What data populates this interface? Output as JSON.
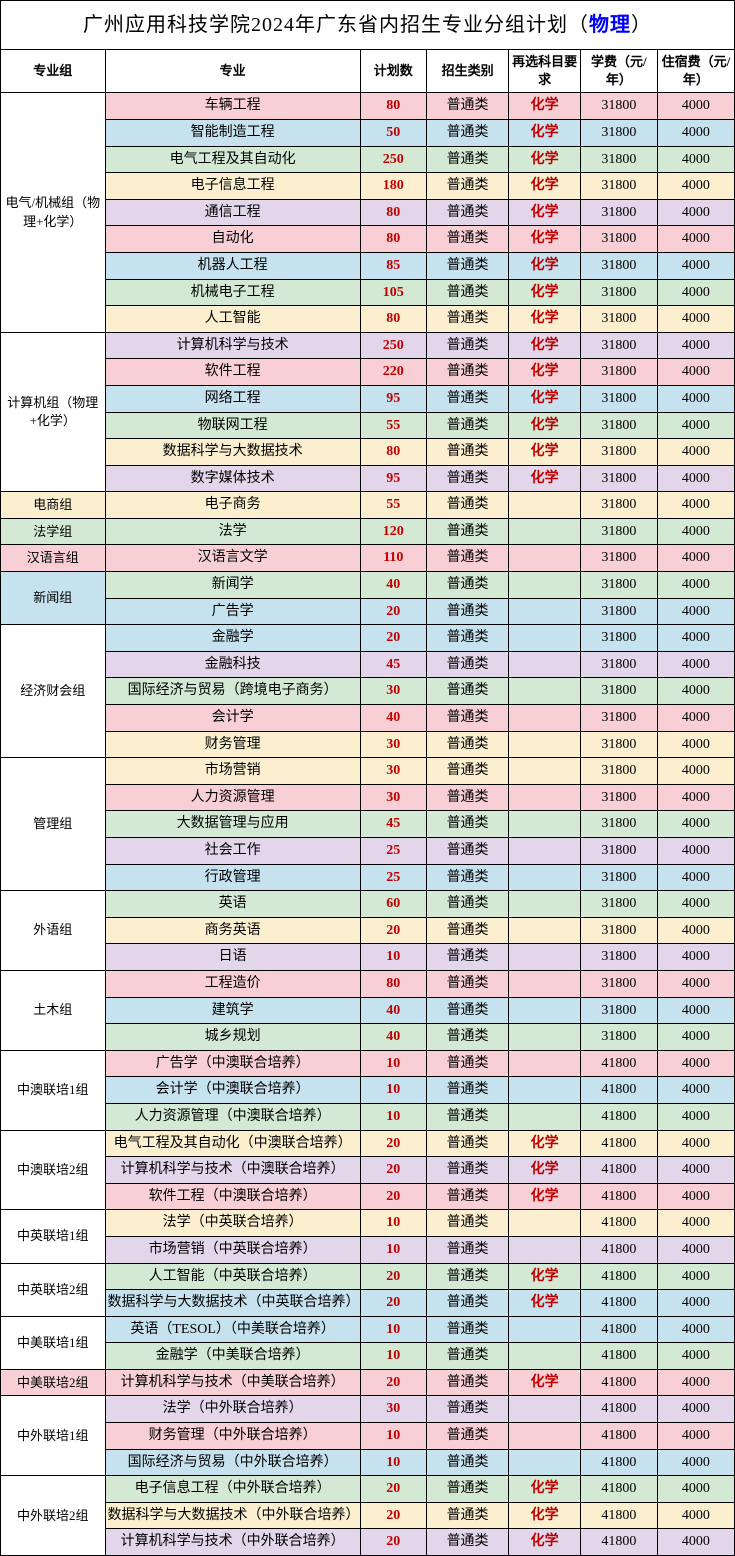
{
  "title_prefix": "广州应用科技学院2024年广东省内招生专业分组计划（",
  "title_subject": "物理",
  "title_suffix": "）",
  "headers": {
    "group": "专业组",
    "major": "专业",
    "plan": "计划数",
    "category": "招生类别",
    "subject": "再选科目要求",
    "tuition": "学费（元/年）",
    "dorm": "住宿费（元/年）"
  },
  "palette": {
    "pink": "#f8cfd4",
    "blue": "#c6e2ef",
    "green": "#d4e9d3",
    "yellow": "#fcefcf",
    "purple": "#e3d6ea"
  },
  "groups": [
    {
      "name": "电气/机械组（物理+化学）",
      "rows": [
        {
          "major": "车辆工程",
          "plan": "80",
          "cat": "普通类",
          "subj": "化学",
          "tuition": "31800",
          "dorm": "4000",
          "c": "pink"
        },
        {
          "major": "智能制造工程",
          "plan": "50",
          "cat": "普通类",
          "subj": "化学",
          "tuition": "31800",
          "dorm": "4000",
          "c": "blue"
        },
        {
          "major": "电气工程及其自动化",
          "plan": "250",
          "cat": "普通类",
          "subj": "化学",
          "tuition": "31800",
          "dorm": "4000",
          "c": "green"
        },
        {
          "major": "电子信息工程",
          "plan": "180",
          "cat": "普通类",
          "subj": "化学",
          "tuition": "31800",
          "dorm": "4000",
          "c": "yellow"
        },
        {
          "major": "通信工程",
          "plan": "80",
          "cat": "普通类",
          "subj": "化学",
          "tuition": "31800",
          "dorm": "4000",
          "c": "purple"
        },
        {
          "major": "自动化",
          "plan": "80",
          "cat": "普通类",
          "subj": "化学",
          "tuition": "31800",
          "dorm": "4000",
          "c": "pink"
        },
        {
          "major": "机器人工程",
          "plan": "85",
          "cat": "普通类",
          "subj": "化学",
          "tuition": "31800",
          "dorm": "4000",
          "c": "blue"
        },
        {
          "major": "机械电子工程",
          "plan": "105",
          "cat": "普通类",
          "subj": "化学",
          "tuition": "31800",
          "dorm": "4000",
          "c": "green"
        },
        {
          "major": "人工智能",
          "plan": "80",
          "cat": "普通类",
          "subj": "化学",
          "tuition": "31800",
          "dorm": "4000",
          "c": "yellow"
        }
      ]
    },
    {
      "name": "计算机组（物理+化学）",
      "rows": [
        {
          "major": "计算机科学与技术",
          "plan": "250",
          "cat": "普通类",
          "subj": "化学",
          "tuition": "31800",
          "dorm": "4000",
          "c": "purple"
        },
        {
          "major": "软件工程",
          "plan": "220",
          "cat": "普通类",
          "subj": "化学",
          "tuition": "31800",
          "dorm": "4000",
          "c": "pink"
        },
        {
          "major": "网络工程",
          "plan": "95",
          "cat": "普通类",
          "subj": "化学",
          "tuition": "31800",
          "dorm": "4000",
          "c": "blue"
        },
        {
          "major": "物联网工程",
          "plan": "55",
          "cat": "普通类",
          "subj": "化学",
          "tuition": "31800",
          "dorm": "4000",
          "c": "green"
        },
        {
          "major": "数据科学与大数据技术",
          "plan": "80",
          "cat": "普通类",
          "subj": "化学",
          "tuition": "31800",
          "dorm": "4000",
          "c": "yellow"
        },
        {
          "major": "数字媒体技术",
          "plan": "95",
          "cat": "普通类",
          "subj": "化学",
          "tuition": "31800",
          "dorm": "4000",
          "c": "purple"
        }
      ]
    },
    {
      "name": "电商组",
      "rows": [
        {
          "major": "电子商务",
          "plan": "55",
          "cat": "普通类",
          "subj": "",
          "tuition": "31800",
          "dorm": "4000",
          "c": "yellow"
        }
      ],
      "groupColor": "yellow"
    },
    {
      "name": "法学组",
      "rows": [
        {
          "major": "法学",
          "plan": "120",
          "cat": "普通类",
          "subj": "",
          "tuition": "31800",
          "dorm": "4000",
          "c": "green"
        }
      ],
      "groupColor": "green"
    },
    {
      "name": "汉语言组",
      "rows": [
        {
          "major": "汉语言文学",
          "plan": "110",
          "cat": "普通类",
          "subj": "",
          "tuition": "31800",
          "dorm": "4000",
          "c": "pink"
        }
      ],
      "groupColor": "pink"
    },
    {
      "name": "新闻组",
      "rows": [
        {
          "major": "新闻学",
          "plan": "40",
          "cat": "普通类",
          "subj": "",
          "tuition": "31800",
          "dorm": "4000",
          "c": "green"
        },
        {
          "major": "广告学",
          "plan": "20",
          "cat": "普通类",
          "subj": "",
          "tuition": "31800",
          "dorm": "4000",
          "c": "blue"
        }
      ],
      "groupColor": "blue"
    },
    {
      "name": "经济财会组",
      "rows": [
        {
          "major": "金融学",
          "plan": "20",
          "cat": "普通类",
          "subj": "",
          "tuition": "31800",
          "dorm": "4000",
          "c": "blue"
        },
        {
          "major": "金融科技",
          "plan": "45",
          "cat": "普通类",
          "subj": "",
          "tuition": "31800",
          "dorm": "4000",
          "c": "purple"
        },
        {
          "major": "国际经济与贸易（跨境电子商务）",
          "plan": "30",
          "cat": "普通类",
          "subj": "",
          "tuition": "31800",
          "dorm": "4000",
          "c": "green"
        },
        {
          "major": "会计学",
          "plan": "40",
          "cat": "普通类",
          "subj": "",
          "tuition": "31800",
          "dorm": "4000",
          "c": "pink"
        },
        {
          "major": "财务管理",
          "plan": "30",
          "cat": "普通类",
          "subj": "",
          "tuition": "31800",
          "dorm": "4000",
          "c": "yellow"
        }
      ]
    },
    {
      "name": "管理组",
      "rows": [
        {
          "major": "市场营销",
          "plan": "30",
          "cat": "普通类",
          "subj": "",
          "tuition": "31800",
          "dorm": "4000",
          "c": "yellow"
        },
        {
          "major": "人力资源管理",
          "plan": "30",
          "cat": "普通类",
          "subj": "",
          "tuition": "31800",
          "dorm": "4000",
          "c": "pink"
        },
        {
          "major": "大数据管理与应用",
          "plan": "45",
          "cat": "普通类",
          "subj": "",
          "tuition": "31800",
          "dorm": "4000",
          "c": "green"
        },
        {
          "major": "社会工作",
          "plan": "25",
          "cat": "普通类",
          "subj": "",
          "tuition": "31800",
          "dorm": "4000",
          "c": "purple"
        },
        {
          "major": "行政管理",
          "plan": "25",
          "cat": "普通类",
          "subj": "",
          "tuition": "31800",
          "dorm": "4000",
          "c": "blue"
        }
      ]
    },
    {
      "name": "外语组",
      "rows": [
        {
          "major": "英语",
          "plan": "60",
          "cat": "普通类",
          "subj": "",
          "tuition": "31800",
          "dorm": "4000",
          "c": "green"
        },
        {
          "major": "商务英语",
          "plan": "20",
          "cat": "普通类",
          "subj": "",
          "tuition": "31800",
          "dorm": "4000",
          "c": "yellow"
        },
        {
          "major": "日语",
          "plan": "10",
          "cat": "普通类",
          "subj": "",
          "tuition": "31800",
          "dorm": "4000",
          "c": "purple"
        }
      ]
    },
    {
      "name": "土木组",
      "rows": [
        {
          "major": "工程造价",
          "plan": "80",
          "cat": "普通类",
          "subj": "",
          "tuition": "31800",
          "dorm": "4000",
          "c": "pink"
        },
        {
          "major": "建筑学",
          "plan": "40",
          "cat": "普通类",
          "subj": "",
          "tuition": "31800",
          "dorm": "4000",
          "c": "blue"
        },
        {
          "major": "城乡规划",
          "plan": "40",
          "cat": "普通类",
          "subj": "",
          "tuition": "31800",
          "dorm": "4000",
          "c": "green"
        }
      ]
    },
    {
      "name": "中澳联培1组",
      "rows": [
        {
          "major": "广告学（中澳联合培养）",
          "plan": "10",
          "cat": "普通类",
          "subj": "",
          "tuition": "41800",
          "dorm": "4000",
          "c": "pink"
        },
        {
          "major": "会计学（中澳联合培养）",
          "plan": "10",
          "cat": "普通类",
          "subj": "",
          "tuition": "41800",
          "dorm": "4000",
          "c": "blue"
        },
        {
          "major": "人力资源管理（中澳联合培养）",
          "plan": "10",
          "cat": "普通类",
          "subj": "",
          "tuition": "41800",
          "dorm": "4000",
          "c": "green"
        }
      ]
    },
    {
      "name": "中澳联培2组",
      "rows": [
        {
          "major": "电气工程及其自动化（中澳联合培养）",
          "plan": "20",
          "cat": "普通类",
          "subj": "化学",
          "tuition": "41800",
          "dorm": "4000",
          "c": "yellow"
        },
        {
          "major": "计算机科学与技术（中澳联合培养）",
          "plan": "20",
          "cat": "普通类",
          "subj": "化学",
          "tuition": "41800",
          "dorm": "4000",
          "c": "purple"
        },
        {
          "major": "软件工程（中澳联合培养）",
          "plan": "20",
          "cat": "普通类",
          "subj": "化学",
          "tuition": "41800",
          "dorm": "4000",
          "c": "pink"
        }
      ]
    },
    {
      "name": "中英联培1组",
      "rows": [
        {
          "major": "法学（中英联合培养）",
          "plan": "10",
          "cat": "普通类",
          "subj": "",
          "tuition": "41800",
          "dorm": "4000",
          "c": "yellow"
        },
        {
          "major": "市场营销（中英联合培养）",
          "plan": "10",
          "cat": "普通类",
          "subj": "",
          "tuition": "41800",
          "dorm": "4000",
          "c": "purple"
        }
      ]
    },
    {
      "name": "中英联培2组",
      "rows": [
        {
          "major": "人工智能（中英联合培养）",
          "plan": "20",
          "cat": "普通类",
          "subj": "化学",
          "tuition": "41800",
          "dorm": "4000",
          "c": "green"
        },
        {
          "major": "数据科学与大数据技术（中英联合培养）",
          "plan": "20",
          "cat": "普通类",
          "subj": "化学",
          "tuition": "41800",
          "dorm": "4000",
          "c": "blue"
        }
      ]
    },
    {
      "name": "中美联培1组",
      "rows": [
        {
          "major": "英语（TESOL）（中美联合培养）",
          "plan": "10",
          "cat": "普通类",
          "subj": "",
          "tuition": "41800",
          "dorm": "4000",
          "c": "blue"
        },
        {
          "major": "金融学（中美联合培养）",
          "plan": "10",
          "cat": "普通类",
          "subj": "",
          "tuition": "41800",
          "dorm": "4000",
          "c": "green"
        }
      ]
    },
    {
      "name": "中美联培2组",
      "rows": [
        {
          "major": "计算机科学与技术（中美联合培养）",
          "plan": "20",
          "cat": "普通类",
          "subj": "化学",
          "tuition": "41800",
          "dorm": "4000",
          "c": "pink"
        }
      ],
      "groupColor": "pink"
    },
    {
      "name": "中外联培1组",
      "rows": [
        {
          "major": "法学（中外联合培养）",
          "plan": "30",
          "cat": "普通类",
          "subj": "",
          "tuition": "41800",
          "dorm": "4000",
          "c": "purple"
        },
        {
          "major": "财务管理（中外联合培养）",
          "plan": "10",
          "cat": "普通类",
          "subj": "",
          "tuition": "41800",
          "dorm": "4000",
          "c": "pink"
        },
        {
          "major": "国际经济与贸易（中外联合培养）",
          "plan": "10",
          "cat": "普通类",
          "subj": "",
          "tuition": "41800",
          "dorm": "4000",
          "c": "blue"
        }
      ]
    },
    {
      "name": "中外联培2组",
      "rows": [
        {
          "major": "电子信息工程（中外联合培养）",
          "plan": "20",
          "cat": "普通类",
          "subj": "化学",
          "tuition": "41800",
          "dorm": "4000",
          "c": "green"
        },
        {
          "major": "数据科学与大数据技术（中外联合培养）",
          "plan": "20",
          "cat": "普通类",
          "subj": "化学",
          "tuition": "41800",
          "dorm": "4000",
          "c": "yellow"
        },
        {
          "major": "计算机科学与技术（中外联合培养）",
          "plan": "20",
          "cat": "普通类",
          "subj": "化学",
          "tuition": "41800",
          "dorm": "4000",
          "c": "purple"
        }
      ]
    }
  ],
  "colwidths": {
    "group": 95,
    "major": 232,
    "plan": 60,
    "cat": 75,
    "subj": 65,
    "tuition": 70,
    "dorm": 70
  }
}
